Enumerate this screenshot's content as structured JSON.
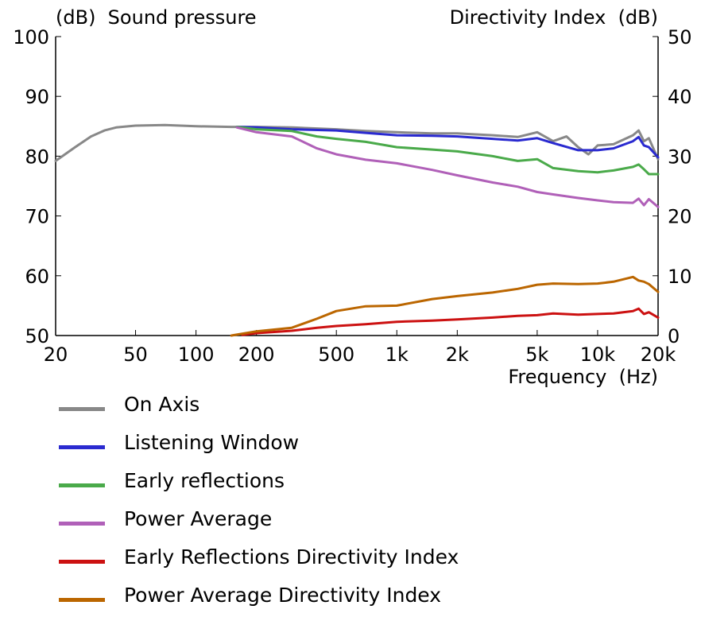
{
  "chart_data": {
    "type": "line",
    "title": "",
    "left_axis_title": "(dB)  Sound pressure",
    "right_axis_title": "Directivity Index  (dB)",
    "xlabel": "Frequency  (Hz)",
    "x_scale": "log",
    "xlim": [
      20,
      20000
    ],
    "ylim_left": [
      50,
      100
    ],
    "ylim_right": [
      0,
      50
    ],
    "x_ticks": [
      20,
      50,
      100,
      200,
      500,
      1000,
      2000,
      5000,
      10000,
      20000
    ],
    "x_tick_labels": [
      "20",
      "50",
      "100",
      "200",
      "500",
      "1k",
      "2k",
      "5k",
      "10k",
      "20k"
    ],
    "y_ticks_left": [
      "50",
      "60",
      "70",
      "80",
      "90",
      "100"
    ],
    "y_ticks_right": [
      "0",
      "10",
      "20",
      "30",
      "40",
      "50"
    ],
    "grid": false,
    "legend_position": "bottom",
    "series": [
      {
        "name": "On Axis",
        "axis": "left",
        "color": "#888888",
        "points": [
          [
            20,
            79.2
          ],
          [
            25,
            81.5
          ],
          [
            30,
            83.3
          ],
          [
            35,
            84.3
          ],
          [
            40,
            84.8
          ],
          [
            50,
            85.1
          ],
          [
            70,
            85.2
          ],
          [
            100,
            85.0
          ],
          [
            150,
            84.9
          ],
          [
            200,
            84.9
          ],
          [
            300,
            84.8
          ],
          [
            500,
            84.5
          ],
          [
            700,
            84.2
          ],
          [
            1000,
            84.0
          ],
          [
            1500,
            83.8
          ],
          [
            2000,
            83.8
          ],
          [
            3000,
            83.5
          ],
          [
            4000,
            83.2
          ],
          [
            5000,
            84.0
          ],
          [
            6000,
            82.5
          ],
          [
            7000,
            83.3
          ],
          [
            8000,
            81.5
          ],
          [
            9000,
            80.3
          ],
          [
            10000,
            81.8
          ],
          [
            12000,
            82.0
          ],
          [
            15000,
            83.5
          ],
          [
            16000,
            84.3
          ],
          [
            17000,
            82.5
          ],
          [
            18000,
            83.0
          ],
          [
            20000,
            79.5
          ]
        ]
      },
      {
        "name": "Listening Window",
        "axis": "left",
        "color": "#2a2ad0",
        "points": [
          [
            160,
            84.9
          ],
          [
            200,
            84.8
          ],
          [
            300,
            84.5
          ],
          [
            500,
            84.3
          ],
          [
            700,
            83.9
          ],
          [
            1000,
            83.5
          ],
          [
            1500,
            83.4
          ],
          [
            2000,
            83.3
          ],
          [
            3000,
            82.9
          ],
          [
            4000,
            82.6
          ],
          [
            5000,
            83.0
          ],
          [
            6000,
            82.2
          ],
          [
            8000,
            81.0
          ],
          [
            10000,
            81.0
          ],
          [
            12000,
            81.3
          ],
          [
            15000,
            82.5
          ],
          [
            16000,
            83.2
          ],
          [
            17000,
            81.8
          ],
          [
            18000,
            81.5
          ],
          [
            20000,
            79.8
          ]
        ]
      },
      {
        "name": "Early reflections",
        "axis": "left",
        "color": "#4aaa4a",
        "points": [
          [
            160,
            84.9
          ],
          [
            200,
            84.5
          ],
          [
            300,
            84.2
          ],
          [
            400,
            83.3
          ],
          [
            500,
            82.9
          ],
          [
            700,
            82.4
          ],
          [
            1000,
            81.5
          ],
          [
            1500,
            81.1
          ],
          [
            2000,
            80.8
          ],
          [
            3000,
            80.0
          ],
          [
            4000,
            79.2
          ],
          [
            5000,
            79.5
          ],
          [
            6000,
            78.0
          ],
          [
            8000,
            77.5
          ],
          [
            10000,
            77.3
          ],
          [
            12000,
            77.6
          ],
          [
            15000,
            78.2
          ],
          [
            16000,
            78.6
          ],
          [
            17000,
            77.8
          ],
          [
            18000,
            77.0
          ],
          [
            20000,
            77.0
          ]
        ]
      },
      {
        "name": "Power Average",
        "axis": "left",
        "color": "#b060b8",
        "points": [
          [
            160,
            84.8
          ],
          [
            200,
            84.0
          ],
          [
            300,
            83.3
          ],
          [
            400,
            81.3
          ],
          [
            500,
            80.3
          ],
          [
            700,
            79.4
          ],
          [
            1000,
            78.8
          ],
          [
            1500,
            77.7
          ],
          [
            2000,
            76.8
          ],
          [
            3000,
            75.6
          ],
          [
            4000,
            74.9
          ],
          [
            5000,
            74.0
          ],
          [
            6000,
            73.6
          ],
          [
            8000,
            73.0
          ],
          [
            10000,
            72.6
          ],
          [
            12000,
            72.3
          ],
          [
            15000,
            72.2
          ],
          [
            16000,
            72.9
          ],
          [
            17000,
            71.8
          ],
          [
            18000,
            72.8
          ],
          [
            20000,
            71.5
          ]
        ]
      },
      {
        "name": "Early Reflections Directivity Index",
        "axis": "right",
        "color": "#cc1111",
        "points": [
          [
            170,
            0.1
          ],
          [
            200,
            0.4
          ],
          [
            300,
            0.8
          ],
          [
            400,
            1.3
          ],
          [
            500,
            1.6
          ],
          [
            700,
            1.9
          ],
          [
            1000,
            2.3
          ],
          [
            1500,
            2.5
          ],
          [
            2000,
            2.7
          ],
          [
            3000,
            3.0
          ],
          [
            4000,
            3.3
          ],
          [
            5000,
            3.4
          ],
          [
            6000,
            3.7
          ],
          [
            8000,
            3.5
          ],
          [
            10000,
            3.6
          ],
          [
            12000,
            3.7
          ],
          [
            15000,
            4.1
          ],
          [
            16000,
            4.5
          ],
          [
            17000,
            3.6
          ],
          [
            18000,
            3.9
          ],
          [
            20000,
            3.0
          ]
        ]
      },
      {
        "name": "Power Average Directivity Index",
        "axis": "right",
        "color": "#bb6600",
        "points": [
          [
            150,
            0.0
          ],
          [
            200,
            0.7
          ],
          [
            300,
            1.3
          ],
          [
            400,
            2.8
          ],
          [
            500,
            4.1
          ],
          [
            700,
            4.9
          ],
          [
            1000,
            5.0
          ],
          [
            1500,
            6.1
          ],
          [
            2000,
            6.6
          ],
          [
            3000,
            7.2
          ],
          [
            4000,
            7.8
          ],
          [
            5000,
            8.5
          ],
          [
            6000,
            8.7
          ],
          [
            8000,
            8.6
          ],
          [
            10000,
            8.7
          ],
          [
            12000,
            9.0
          ],
          [
            15000,
            9.8
          ],
          [
            16000,
            9.2
          ],
          [
            17000,
            9.0
          ],
          [
            18000,
            8.6
          ],
          [
            20000,
            7.3
          ]
        ]
      }
    ]
  }
}
